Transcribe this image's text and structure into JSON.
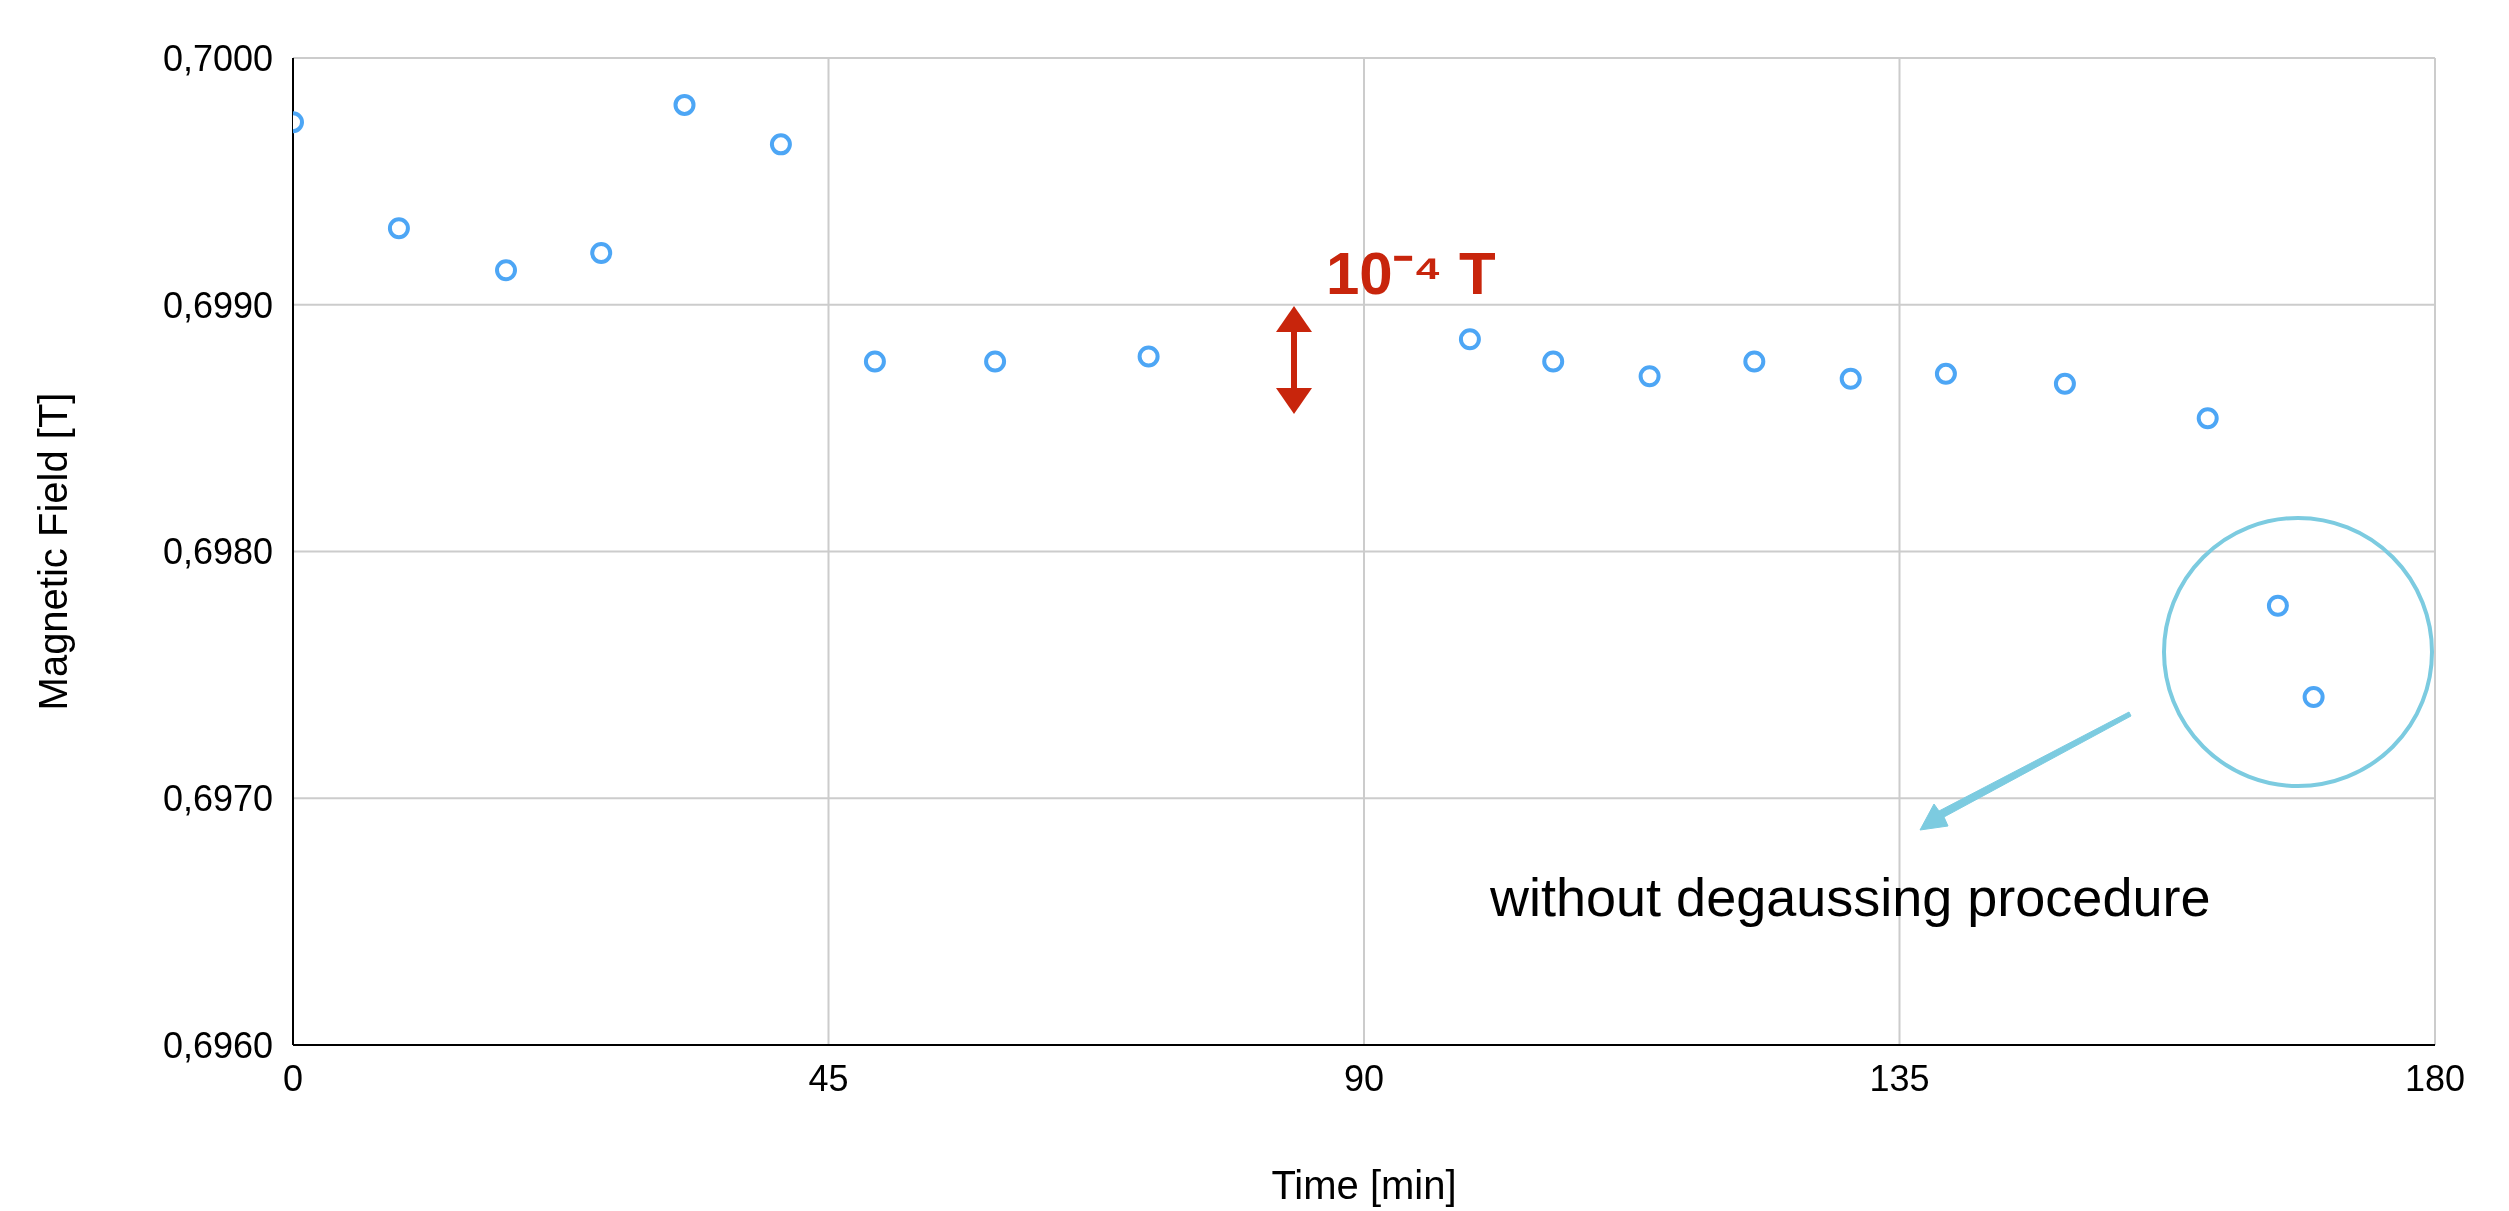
{
  "chart_data": {
    "type": "scatter",
    "xlabel": "Time [min]",
    "ylabel": "Magnetic Field [T]",
    "x": [
      0,
      8.9,
      17.9,
      25.9,
      32.9,
      41.0,
      48.9,
      59.0,
      71.9,
      98.9,
      105.9,
      114.0,
      122.8,
      130.9,
      138.9,
      148.9,
      160.9,
      166.8,
      169.8
    ],
    "series": [
      {
        "color": "#4da6f5",
        "values": [
          0.69974,
          0.69931,
          0.69914,
          0.69921,
          0.69981,
          0.69965,
          0.69877,
          0.69877,
          0.69879,
          0.69886,
          0.69877,
          0.69871,
          0.69877,
          0.6987,
          0.69872,
          0.69868,
          0.69854,
          0.69778,
          0.69741
        ]
      }
    ],
    "xlim": [
      0,
      180
    ],
    "xticks": [
      0,
      45,
      90,
      135,
      180
    ],
    "ylim": [
      0.696,
      0.7
    ],
    "yticks": [
      {
        "value": 0.696,
        "label": "0,6960"
      },
      {
        "value": 0.697,
        "label": "0,6970"
      },
      {
        "value": 0.698,
        "label": "0,6980"
      },
      {
        "value": 0.699,
        "label": "0,6990"
      },
      {
        "value": 0.7,
        "label": "0,7000"
      }
    ],
    "grid": true,
    "marker": "circle",
    "legend": false,
    "annotations": [
      "10⁻⁴ T",
      "without degaussing procedure"
    ]
  }
}
